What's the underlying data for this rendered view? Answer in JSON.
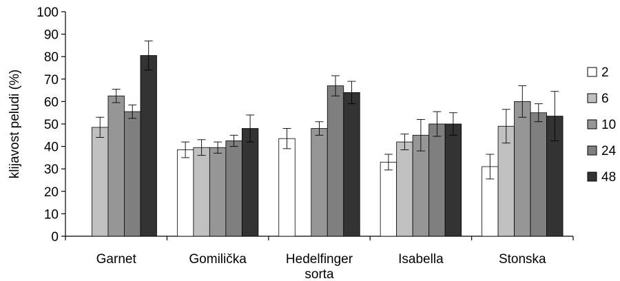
{
  "chart_data": {
    "type": "bar",
    "title": "",
    "ylabel": "klijavost peludi (%)",
    "xlabel": "",
    "ylim": [
      0,
      100
    ],
    "yticks": [
      0,
      10,
      20,
      30,
      40,
      50,
      60,
      70,
      80,
      90,
      100
    ],
    "categories": [
      {
        "lines": [
          "Garnet"
        ]
      },
      {
        "lines": [
          "Gomilička"
        ]
      },
      {
        "lines": [
          "Hedelfinger",
          "sorta"
        ]
      },
      {
        "lines": [
          "Isabella"
        ]
      },
      {
        "lines": [
          "Stonska"
        ]
      }
    ],
    "series": [
      {
        "name": "2",
        "color": "#ffffff",
        "values": [
          null,
          38.5,
          43.5,
          33,
          31
        ],
        "errors": [
          null,
          3.5,
          4.5,
          3.5,
          5.5
        ]
      },
      {
        "name": "6",
        "color": "#c0c0c0",
        "values": [
          48.5,
          39.5,
          null,
          42,
          49
        ],
        "errors": [
          4.5,
          3.5,
          null,
          3.5,
          7.5
        ]
      },
      {
        "name": "10",
        "color": "#969696",
        "values": [
          62.5,
          39.5,
          48,
          45,
          60
        ],
        "errors": [
          3,
          2.5,
          3,
          7,
          7
        ]
      },
      {
        "name": "24",
        "color": "#7f7f7f",
        "values": [
          55.5,
          42.5,
          67,
          50,
          55
        ],
        "errors": [
          3,
          2.5,
          4.5,
          5.5,
          4
        ]
      },
      {
        "name": "48",
        "color": "#333333",
        "values": [
          80.5,
          48,
          64,
          50,
          53.5
        ],
        "errors": [
          6.5,
          6,
          5,
          5,
          11
        ]
      }
    ],
    "grid": false,
    "legend": "right"
  }
}
